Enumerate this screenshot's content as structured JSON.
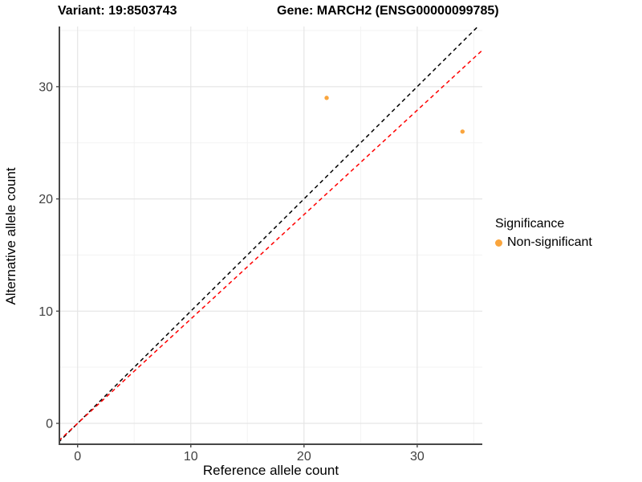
{
  "titles": {
    "variant": "Variant: 19:8503743",
    "gene": "Gene: MARCH2 (ENSG00000099785)"
  },
  "legend": {
    "title": "Significance",
    "items": [
      {
        "label": "Non-significant",
        "color": "#FAA53D"
      }
    ]
  },
  "chart_data": {
    "type": "scatter",
    "xlabel": "Reference allele count",
    "ylabel": "Alternative allele count",
    "xlim": [
      -1.61,
      35.75
    ],
    "ylim": [
      -1.86,
      35.36
    ],
    "x_ticks": [
      0,
      10,
      20,
      30
    ],
    "y_ticks": [
      0,
      10,
      20,
      30
    ],
    "x_minor_ticks": [
      5,
      15,
      25,
      35
    ],
    "y_minor_ticks": [
      5,
      15,
      25,
      35
    ],
    "grid": true,
    "legend_position": "right",
    "series": [
      {
        "name": "Non-significant",
        "color": "#FAA53D",
        "points": [
          {
            "x": 22,
            "y": 29
          },
          {
            "x": 34,
            "y": 26
          }
        ]
      }
    ],
    "lines": [
      {
        "name": "identity",
        "slope": 1.0,
        "intercept": 0,
        "color": "#000000",
        "style": "dashed"
      },
      {
        "name": "expected-ratio",
        "slope": 0.93,
        "intercept": 0,
        "color": "#FF0000",
        "style": "dashed"
      }
    ],
    "colors": {
      "major_grid": "#E5E5E5",
      "minor_grid": "#F3F3F3",
      "axis_line": "#474747",
      "tick_label": "#404040"
    }
  }
}
